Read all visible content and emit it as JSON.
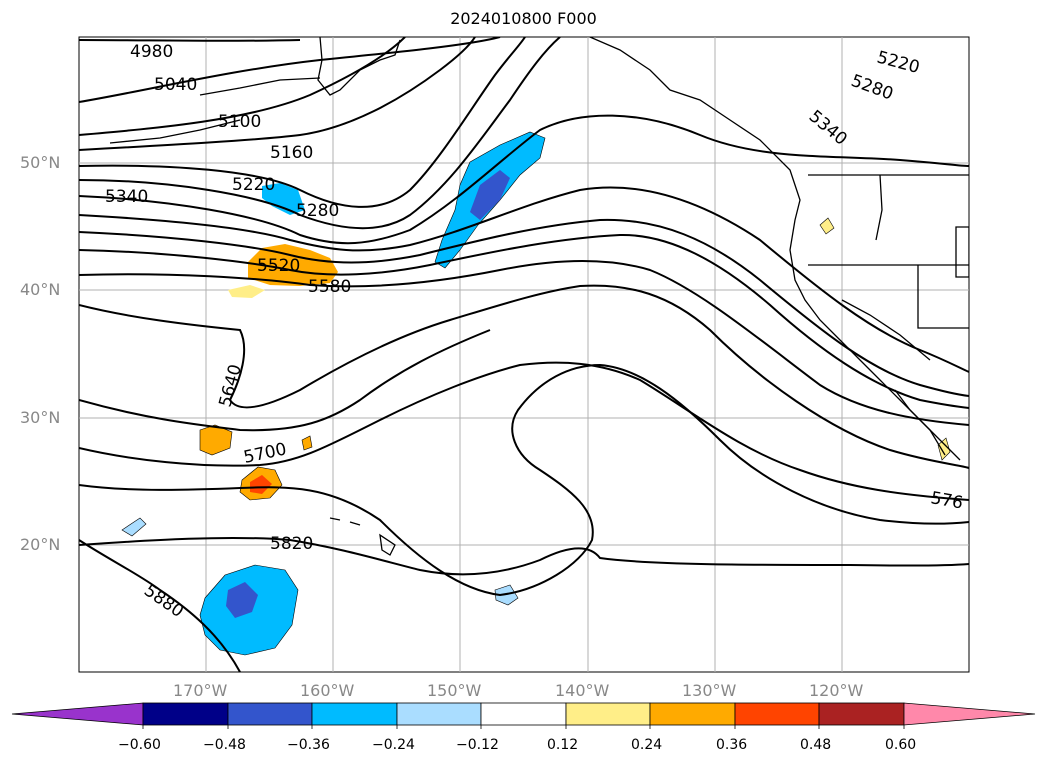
{
  "title": "2024010800 F000",
  "map": {
    "lat_labels": [
      "50°N",
      "40°N",
      "30°N",
      "20°N"
    ],
    "lon_labels": [
      "170°W",
      "160°W",
      "150°W",
      "140°W",
      "130°W",
      "120°W"
    ],
    "contour_labels": [
      "4980",
      "5040",
      "5100",
      "5160",
      "5220",
      "5280",
      "5340",
      "5520",
      "5580",
      "5640",
      "5700",
      "5820",
      "5880",
      "5220",
      "5280",
      "5340",
      "576"
    ],
    "line_color": "#000000",
    "grid_color": "#b0b0b0"
  },
  "colorbar": {
    "ticks": [
      "−0.60",
      "−0.48",
      "−0.36",
      "−0.24",
      "−0.12",
      "0.12",
      "0.24",
      "0.36",
      "0.48",
      "0.60"
    ],
    "colors": [
      "#9933cc",
      "#000088",
      "#3355cc",
      "#00bbff",
      "#aaddff",
      "#ffffff",
      "#ffee88",
      "#ffaa00",
      "#ff4400",
      "#aa2222",
      "#ff88aa"
    ]
  }
}
